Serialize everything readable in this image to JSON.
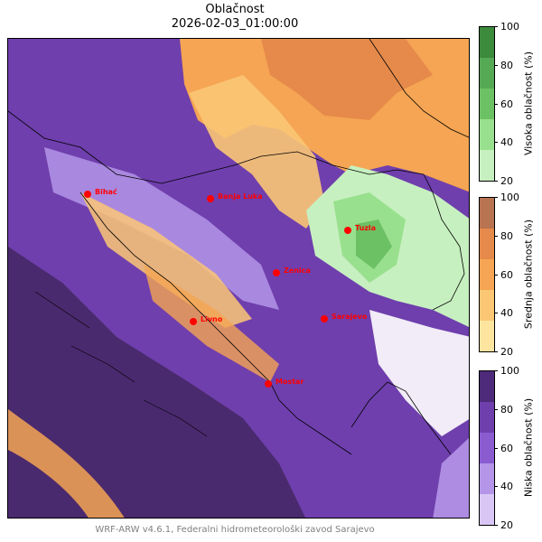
{
  "header": {
    "title": "Oblačnost",
    "subtitle": "2026-02-03_01:00:00"
  },
  "map": {
    "cities": [
      {
        "name": "Bihać"
      },
      {
        "name": "Banja Luka"
      },
      {
        "name": "Tuzla"
      },
      {
        "name": "Zenica"
      },
      {
        "name": "Sarajevo"
      },
      {
        "name": "Livno"
      },
      {
        "name": "Mostar"
      }
    ],
    "city_marker_color": "#ff0000"
  },
  "colorbars": [
    {
      "label": "Visoka oblačnost (%)",
      "ticks": [
        "20",
        "40",
        "60",
        "80",
        "100"
      ],
      "colors": [
        "#c7f0c0",
        "#99e08e",
        "#6cc164",
        "#55a955",
        "#3c8a3c"
      ]
    },
    {
      "label": "Srednja oblačnost (%)",
      "ticks": [
        "20",
        "40",
        "60",
        "80",
        "100"
      ],
      "colors": [
        "#fde5a0",
        "#fbc775",
        "#f5a553",
        "#e58a4a",
        "#b87350"
      ]
    },
    {
      "label": "Niska oblačnost (%)",
      "ticks": [
        "20",
        "40",
        "60",
        "80",
        "100"
      ],
      "colors": [
        "#d9c6f5",
        "#b495e8",
        "#8a5cd0",
        "#6f3fad",
        "#4d2a7a"
      ]
    }
  ],
  "footer": {
    "credit": "WRF-ARW v4.6.1, Federalni hidrometeorološki zavod Sarajevo"
  }
}
